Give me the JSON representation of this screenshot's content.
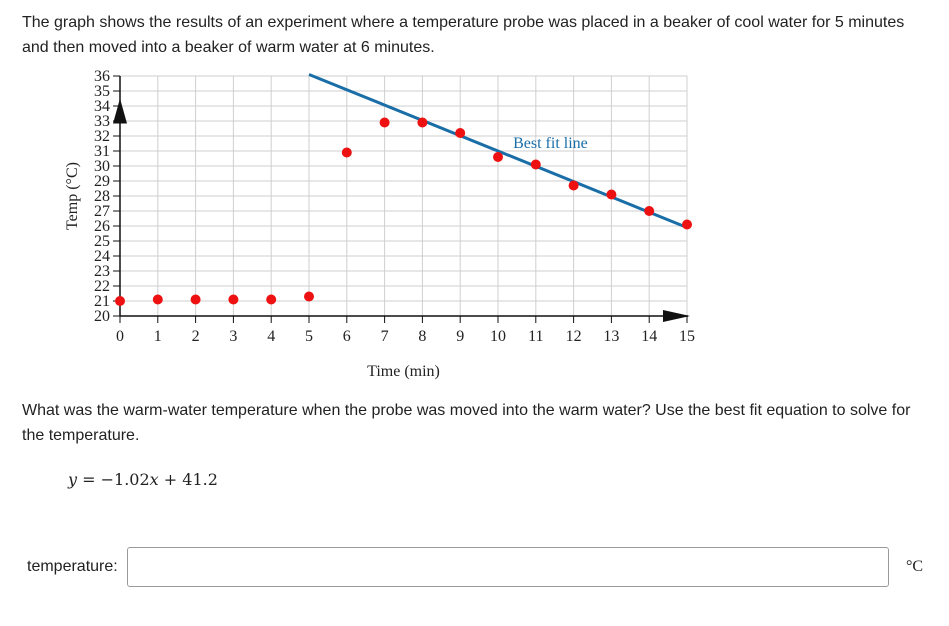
{
  "problem": {
    "intro": "The graph shows the results of an experiment where a temperature probe was placed in a beaker of cool water for 5 minutes and then moved into a beaker of warm water at 6 minutes.",
    "question": "What was the warm-water temperature when the probe was moved into the warm water? Use the best fit equation to solve for the temperature.",
    "equation": {
      "lhs": "y",
      "eq": " = −1.02",
      "var": "x",
      "rest": " + 41.2"
    },
    "answer_label": "temperature:",
    "answer_value": "",
    "unit": "°C"
  },
  "chart_data": {
    "type": "scatter",
    "xlabel": "Time (min)",
    "ylabel": "Temp (°C)",
    "xlim": [
      0,
      15
    ],
    "ylim": [
      20,
      36
    ],
    "x_ticks": [
      0,
      1,
      2,
      3,
      4,
      5,
      6,
      7,
      8,
      9,
      10,
      11,
      12,
      13,
      14,
      15
    ],
    "y_ticks": [
      20,
      21,
      22,
      23,
      24,
      25,
      26,
      27,
      28,
      29,
      30,
      31,
      32,
      33,
      34,
      35,
      36
    ],
    "grid": true,
    "series": [
      {
        "color": "#ee1111",
        "points": [
          [
            0,
            21
          ],
          [
            1,
            21.1
          ],
          [
            2,
            21.1
          ],
          [
            3,
            21.1
          ],
          [
            4,
            21.1
          ],
          [
            5,
            21.3
          ],
          [
            6,
            30.9
          ],
          [
            7,
            32.9
          ],
          [
            8,
            32.9
          ],
          [
            9,
            32.2
          ],
          [
            10,
            30.6
          ],
          [
            11,
            30.1
          ],
          [
            12,
            28.7
          ],
          [
            13,
            28.1
          ],
          [
            14,
            27
          ],
          [
            15,
            26.1
          ]
        ]
      }
    ],
    "fit_line": {
      "label": "Best fit line",
      "slope": -1.02,
      "intercept": 41.2,
      "x_range": [
        5,
        15
      ],
      "color": "#1a6ea8"
    }
  }
}
